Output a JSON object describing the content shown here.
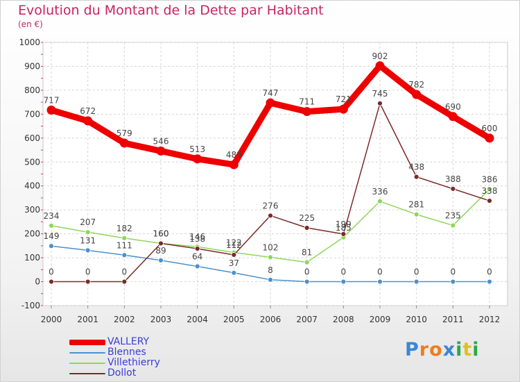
{
  "header": {
    "title": "Evolution du Montant de la Dette par Habitant",
    "subtitle": "(en €)"
  },
  "logo": {
    "letters": [
      "P",
      "r",
      "o",
      "x",
      "i",
      "t",
      "i"
    ],
    "colors": [
      "#3a86d6",
      "#f07c1e",
      "#f07c1e",
      "#3a86d6",
      "#2aa84a",
      "#e0c020",
      "#2aa84a"
    ]
  },
  "colors": {
    "title": "#c8235e",
    "legend_text": "#3b3bd6",
    "axis_text": "#333333"
  },
  "chart_data": {
    "type": "line",
    "x": [
      "2000",
      "2001",
      "2002",
      "2003",
      "2004",
      "2005",
      "2006",
      "2007",
      "2008",
      "2009",
      "2010",
      "2011",
      "2012"
    ],
    "ylim": [
      -100,
      1000
    ],
    "yticks": [
      "-100",
      "0",
      "100",
      "200",
      "300",
      "400",
      "500",
      "600",
      "700",
      "800",
      "900",
      "1000"
    ],
    "grid": true,
    "legend_position": "bottom-left",
    "series": [
      {
        "name": "VALLERY",
        "values": [
          717,
          672,
          579,
          546,
          513,
          489,
          747,
          711,
          721,
          902,
          782,
          690,
          600
        ],
        "labels": [
          "717",
          "672",
          "579",
          "546",
          "513",
          "489",
          "747",
          "711",
          "721",
          "902",
          "782",
          "690",
          "600"
        ],
        "color": "#ee0000"
      },
      {
        "name": "Blennes",
        "values": [
          149,
          131,
          111,
          89,
          64,
          37,
          8,
          0,
          0,
          0,
          0,
          0,
          0
        ],
        "labels": [
          "149",
          "131",
          "111",
          "89",
          "64",
          "37",
          "8",
          "0",
          "0",
          "0",
          "0",
          "0",
          "0"
        ],
        "color": "#4a90d0"
      },
      {
        "name": "Villethierry",
        "values": [
          234,
          207,
          182,
          160,
          146,
          122,
          102,
          81,
          185,
          336,
          281,
          235,
          386
        ],
        "labels": [
          "234",
          "207",
          "182",
          "160",
          "146",
          "122",
          "102",
          "81",
          "185",
          "336",
          "281",
          "235",
          "386"
        ],
        "color": "#8fd65a"
      },
      {
        "name": "Dollot",
        "values": [
          0,
          0,
          0,
          160,
          138,
          112,
          276,
          225,
          199,
          745,
          438,
          388,
          338
        ],
        "labels": [
          "0",
          "0",
          "0",
          "160",
          "138",
          "112",
          "276",
          "225",
          "199",
          "745",
          "438",
          "388",
          "338"
        ],
        "color": "#7a2a2a"
      }
    ]
  }
}
